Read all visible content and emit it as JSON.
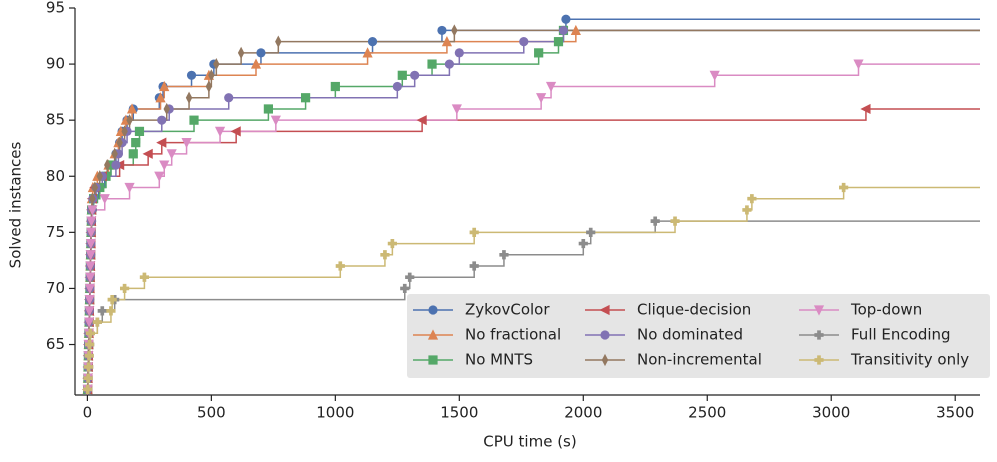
{
  "chart_data": {
    "type": "step",
    "xlabel": "CPU time (s)",
    "ylabel": "Solved instances",
    "xlim": [
      -50,
      3600
    ],
    "ylim": [
      60.5,
      95
    ],
    "xticks": [
      0,
      500,
      1000,
      1500,
      2000,
      2500,
      3000,
      3500
    ],
    "yticks": [
      65,
      70,
      75,
      80,
      85,
      90,
      95
    ],
    "legend": "lower right",
    "series": [
      {
        "name": "ZykovColor",
        "color": "#4c72b0",
        "marker": "o",
        "x": [
          1,
          2,
          3,
          4,
          5,
          6,
          7,
          8,
          9,
          10,
          11,
          12,
          13,
          14,
          15,
          17,
          20,
          25,
          45,
          70,
          95,
          115,
          130,
          140,
          160,
          185,
          290,
          305,
          420,
          510,
          700,
          1150,
          1430,
          1930
        ],
        "values": [
          61,
          62,
          63,
          64,
          65,
          66,
          67,
          68,
          69,
          70,
          71,
          72,
          73,
          74,
          75,
          76,
          77,
          78,
          79,
          80,
          81,
          82,
          83,
          84,
          85,
          86,
          87,
          88,
          89,
          90,
          91,
          92,
          93,
          94
        ]
      },
      {
        "name": "No fractional",
        "color": "#dd8452",
        "marker": "^",
        "x": [
          1,
          2,
          3,
          4,
          5,
          6,
          7,
          8,
          9,
          10,
          11,
          12,
          13,
          14,
          15,
          16,
          17,
          18,
          22,
          40,
          85,
          110,
          125,
          135,
          155,
          180,
          295,
          310,
          490,
          680,
          1130,
          1450,
          1970
        ],
        "values": [
          61,
          62,
          63,
          64,
          65,
          66,
          67,
          68,
          69,
          70,
          71,
          72,
          73,
          74,
          75,
          76,
          77,
          78,
          79,
          80,
          81,
          82,
          83,
          84,
          85,
          86,
          87,
          88,
          89,
          90,
          91,
          92,
          93
        ]
      },
      {
        "name": "No MNTS",
        "color": "#55a868",
        "marker": "s",
        "x": [
          1,
          2,
          3,
          4,
          5,
          6,
          7,
          8,
          9,
          10,
          11,
          12,
          13,
          14,
          15,
          16,
          17,
          25,
          50,
          75,
          95,
          185,
          195,
          210,
          430,
          730,
          880,
          1000,
          1270,
          1390,
          1820,
          1900,
          1920
        ],
        "values": [
          61,
          62,
          63,
          64,
          65,
          66,
          67,
          68,
          69,
          70,
          71,
          72,
          73,
          74,
          75,
          76,
          77,
          78,
          79,
          80,
          81,
          82,
          83,
          84,
          85,
          86,
          87,
          88,
          89,
          90,
          91,
          92,
          93
        ]
      },
      {
        "name": "Clique-decision",
        "color": "#c44e52",
        "marker": "<",
        "x": [
          1,
          2,
          3,
          4,
          5,
          6,
          7,
          8,
          9,
          10,
          11,
          12,
          13,
          14,
          15,
          16,
          17,
          20,
          30,
          60,
          130,
          245,
          300,
          600,
          1350,
          3140
        ],
        "values": [
          61,
          62,
          63,
          64,
          65,
          66,
          67,
          68,
          69,
          70,
          71,
          72,
          73,
          74,
          75,
          76,
          77,
          78,
          79,
          80,
          81,
          82,
          83,
          84,
          85,
          86
        ]
      },
      {
        "name": "No dominated",
        "color": "#8172b3",
        "marker": "o",
        "x": [
          1,
          2,
          3,
          4,
          5,
          6,
          7,
          8,
          9,
          10,
          11,
          12,
          13,
          14,
          15,
          16,
          17,
          22,
          35,
          60,
          115,
          125,
          140,
          160,
          300,
          330,
          570,
          1250,
          1320,
          1460,
          1500,
          1760,
          1920
        ],
        "values": [
          61,
          62,
          63,
          64,
          65,
          66,
          67,
          68,
          69,
          70,
          71,
          72,
          73,
          74,
          75,
          76,
          77,
          78,
          79,
          80,
          81,
          82,
          83,
          84,
          85,
          86,
          87,
          88,
          89,
          90,
          91,
          92,
          93
        ]
      },
      {
        "name": "Non-incremental",
        "color": "#937860",
        "marker": "d",
        "x": [
          1,
          2,
          3,
          4,
          5,
          6,
          7,
          8,
          9,
          10,
          11,
          12,
          13,
          14,
          15,
          16,
          17,
          20,
          30,
          50,
          80,
          110,
          130,
          150,
          170,
          320,
          410,
          490,
          500,
          520,
          620,
          770,
          1480
        ],
        "values": [
          61,
          62,
          63,
          64,
          65,
          66,
          67,
          68,
          69,
          70,
          71,
          72,
          73,
          74,
          75,
          76,
          77,
          78,
          79,
          80,
          81,
          82,
          83,
          84,
          85,
          86,
          87,
          88,
          89,
          90,
          91,
          92,
          93
        ]
      },
      {
        "name": "Top-down",
        "color": "#da8bc3",
        "marker": "v",
        "x": [
          1,
          2,
          3,
          4,
          5,
          6,
          7,
          8,
          9,
          10,
          11,
          12,
          13,
          14,
          15,
          16,
          20,
          70,
          170,
          290,
          310,
          340,
          400,
          535,
          760,
          1490,
          1830,
          1870,
          2530,
          3110
        ],
        "values": [
          61,
          62,
          63,
          64,
          65,
          66,
          67,
          68,
          69,
          70,
          71,
          72,
          73,
          74,
          75,
          76,
          77,
          78,
          79,
          80,
          81,
          82,
          83,
          84,
          85,
          86,
          87,
          88,
          89,
          90
        ]
      },
      {
        "name": "Full Encoding",
        "color": "#8c8c8c",
        "marker": "P",
        "x": [
          1,
          3,
          5,
          7,
          9,
          12,
          40,
          60,
          110,
          1280,
          1300,
          1560,
          1680,
          2000,
          2030,
          2290
        ],
        "values": [
          61,
          62,
          63,
          64,
          65,
          66,
          67,
          68,
          69,
          70,
          71,
          72,
          73,
          74,
          75,
          76
        ]
      },
      {
        "name": "Transitivity only",
        "color": "#ccb974",
        "marker": "P",
        "x": [
          1,
          3,
          5,
          7,
          9,
          12,
          40,
          95,
          100,
          150,
          230,
          1020,
          1200,
          1230,
          1560,
          2370,
          2660,
          2680,
          3050
        ],
        "values": [
          61,
          62,
          63,
          64,
          65,
          66,
          67,
          68,
          69,
          70,
          71,
          72,
          73,
          74,
          75,
          76,
          77,
          78,
          79
        ]
      }
    ]
  }
}
